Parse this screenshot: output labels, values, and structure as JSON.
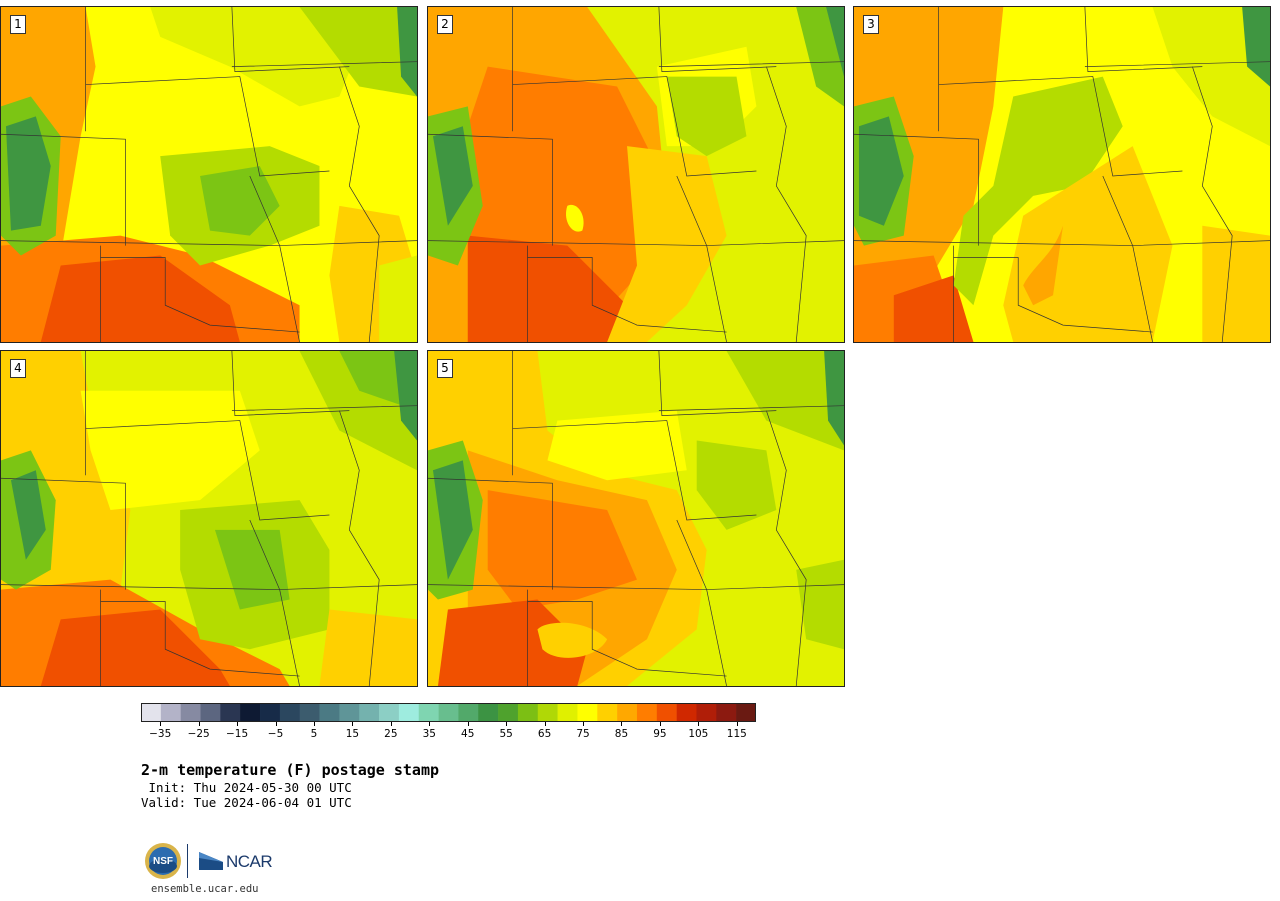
{
  "figure": {
    "title": "2-m temperature (F) postage stamp",
    "init": " Init: Thu 2024-05-30 00 UTC",
    "valid": "Valid: Tue 2024-06-04 01 UTC",
    "site": "ensemble.ucar.edu"
  },
  "logos": {
    "nsf_text": "NSF",
    "ncar_text": "NCAR"
  },
  "panels": [
    {
      "label": "1"
    },
    {
      "label": "2"
    },
    {
      "label": "3"
    },
    {
      "label": "4"
    },
    {
      "label": "5"
    }
  ],
  "colorbar": {
    "units": "F",
    "tick_labels": [
      "−35",
      "−25",
      "−15",
      "−5",
      "5",
      "15",
      "25",
      "35",
      "45",
      "55",
      "65",
      "75",
      "85",
      "95",
      "105",
      "115"
    ],
    "min": -40,
    "max": 120,
    "step": 5,
    "colors": [
      "#e3e3ec",
      "#b3b3c8",
      "#868aa2",
      "#5c6680",
      "#2a3652",
      "#0e1a33",
      "#172b48",
      "#2b475f",
      "#3c5c6e",
      "#4b7a84",
      "#5f9598",
      "#74b2ae",
      "#8ccfc5",
      "#9eecdf",
      "#7fd5b1",
      "#68be8e",
      "#52a96a",
      "#3c9343",
      "#4fa22d",
      "#7cbf14",
      "#b0d806",
      "#e0f000",
      "#ffff00",
      "#ffd000",
      "#ffa800",
      "#ff7d00",
      "#f05000",
      "#d02800",
      "#b01e08",
      "#8c1a10",
      "#6a1a12"
    ]
  },
  "map_colors": {
    "yellow": "#ffff00",
    "lime_yellow": "#e2f200",
    "light_green": "#b4dc00",
    "green": "#7cc514",
    "dark_green": "#3f9641",
    "gold": "#ffd000",
    "orange": "#ffa600",
    "dark_orange": "#ff7d00",
    "red_orange": "#f05000",
    "border": "#333333"
  }
}
